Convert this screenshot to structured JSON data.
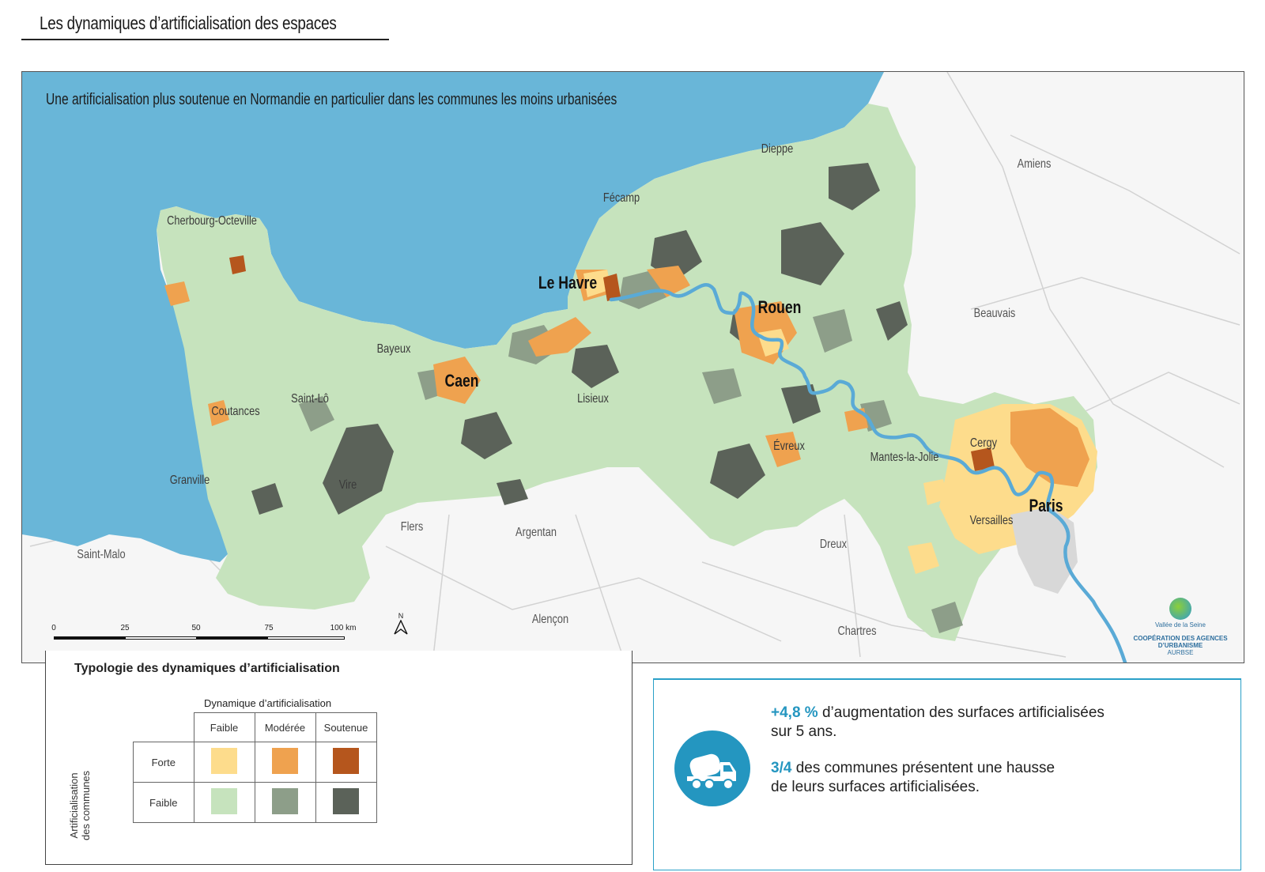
{
  "header": {
    "title": "Les dynamiques d’artificialisation des espaces"
  },
  "map": {
    "subtitle": "Une artificialisation plus soutenue en Normandie en particulier dans les communes les moins urbanisées",
    "colors": {
      "sea": "#69b6d8",
      "river": "#5aaad6",
      "land_outside": "#f5f5f5",
      "roads": "#cfcfcf"
    },
    "cities_major": [
      "Le Havre",
      "Rouen",
      "Caen",
      "Paris"
    ],
    "cities": [
      "Cherbourg-Octeville",
      "Bayeux",
      "Saint-Lô",
      "Coutances",
      "Granville",
      "Vire",
      "Lisieux",
      "Fécamp",
      "Dieppe",
      "Évreux",
      "Mantes-la-Jolie",
      "Cergy",
      "Versailles"
    ],
    "cities_outside": [
      "Amiens",
      "Beauvais",
      "Flers",
      "Argentan",
      "Dreux",
      "Saint-Malo",
      "Alençon",
      "Chartres"
    ],
    "scale": {
      "ticks": [
        "0",
        "25",
        "50",
        "75",
        "100 km"
      ]
    },
    "north_label": "N",
    "logo": {
      "line1": "Vallée de la Seine",
      "line2": "COOPÉRATION DES AGENCES D’URBANISME",
      "line3": "AURBSE"
    }
  },
  "legend": {
    "title": "Typologie des dynamiques d’artificialisation",
    "column_axis": "Dynamique d’artificialisation",
    "columns": [
      "Faible",
      "Modérée",
      "Soutenue"
    ],
    "row_axis_line1": "Artificialisation",
    "row_axis_line2": "des communes",
    "rows": [
      "Forte",
      "Faible"
    ],
    "colors": {
      "forte_faible": "#fddc8c",
      "forte_moderee": "#efa24f",
      "forte_soutenue": "#b5561d",
      "faible_faible": "#c6e3bd",
      "faible_moderee": "#8d9e89",
      "faible_soutenue": "#5b6259"
    }
  },
  "stats": {
    "icon": "truck-icon",
    "stat1_value": "+4,8 %",
    "stat1_text_a": "d’augmentation des surfaces artificialisées",
    "stat1_text_b": "sur 5 ans.",
    "stat2_value": "3/4",
    "stat2_text_a": "des communes présentent une hausse",
    "stat2_text_b": "de leurs surfaces artificialisées.",
    "accent": "#2496c0"
  }
}
